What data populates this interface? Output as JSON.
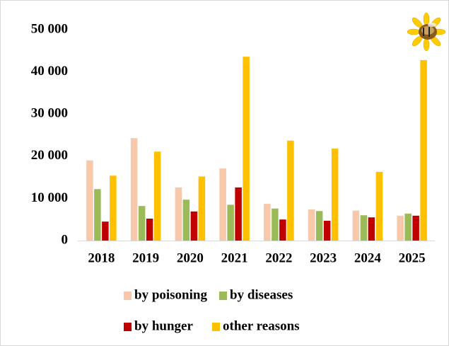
{
  "chart_data": {
    "type": "bar",
    "categories": [
      "2018",
      "2019",
      "2020",
      "2021",
      "2022",
      "2023",
      "2024",
      "2025"
    ],
    "series": [
      {
        "name": "by poisoning",
        "color": "#f8c8aa",
        "values": [
          19000,
          24300,
          12600,
          17100,
          8700,
          7400,
          7100,
          5900
        ]
      },
      {
        "name": "by diseases",
        "color": "#9bbb59",
        "values": [
          12200,
          8200,
          9700,
          8500,
          7600,
          7000,
          6000,
          6400
        ]
      },
      {
        "name": "by hunger",
        "color": "#c00000",
        "values": [
          4500,
          5200,
          6900,
          12600,
          5000,
          4700,
          5500,
          5900
        ]
      },
      {
        "name": "other reasons",
        "color": "#ffc000",
        "values": [
          15400,
          21100,
          15200,
          43600,
          23700,
          21800,
          16300,
          42800
        ]
      }
    ],
    "ylim": [
      0,
      50000
    ],
    "yticks": [
      0,
      {
        "value": 10000,
        "label": "10 000"
      },
      {
        "value": 20000,
        "label": "20 000"
      },
      {
        "value": 30000,
        "label": "30 000"
      },
      {
        "value": 40000,
        "label": "40 000"
      },
      {
        "value": 50000,
        "label": "50 000"
      }
    ],
    "grid": false
  }
}
